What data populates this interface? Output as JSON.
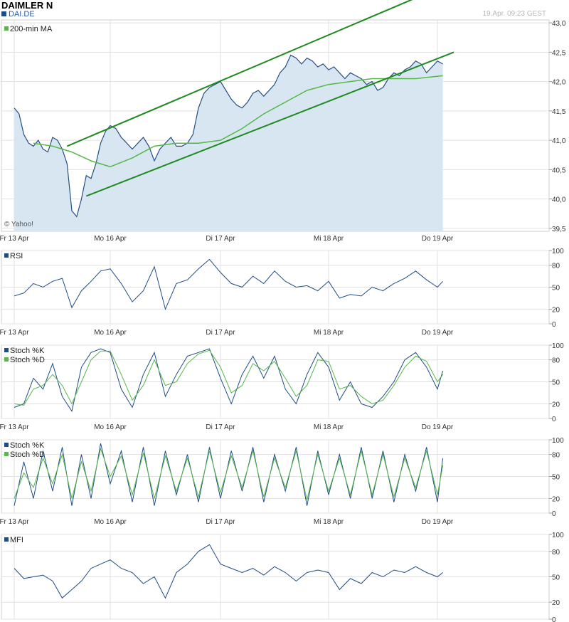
{
  "header": {
    "title": "DAIMLER N",
    "symbol": "DAI.DE",
    "timestamp": "19.Apr. 09:23 GEST"
  },
  "copyright": "© Yahoo!",
  "colors": {
    "price_fill": "#d7e6f1",
    "price_line": "#244f82",
    "channel": "#1f8a1f",
    "ma": "#55b847",
    "sar_up": "#4cb848",
    "sar_down": "#cc1111",
    "band": "#8a8a8a",
    "grid": "#e1e1e1",
    "osc_line": "#1d4d86",
    "osc_signal": "#55b847"
  },
  "x_axis_labels": [
    "Fr 13 Apr",
    "Mo 16 Apr",
    "Di 17 Apr",
    "Mi 18 Apr",
    "Do 19 Apr"
  ],
  "chart_data": [
    {
      "type": "line",
      "panel": "price",
      "legend": [
        "200-min MA"
      ],
      "y_ticks": [
        "43,0",
        "42,5",
        "42,0",
        "41,5",
        "41,0",
        "40,5",
        "40,0",
        "39,5"
      ],
      "ylim": [
        39.45,
        43.05
      ],
      "x_days": [
        "Fr 13 Apr",
        "Mo 16 Apr",
        "Di 17 Apr",
        "Mi 18 Apr",
        "Do 19 Apr"
      ],
      "series": [
        {
          "name": "DAI.DE",
          "x": [
            0.0,
            0.05,
            0.1,
            0.15,
            0.2,
            0.25,
            0.3,
            0.35,
            0.4,
            0.45,
            0.5,
            0.55,
            0.6,
            0.65,
            0.7,
            0.75,
            0.8,
            0.85,
            0.9,
            0.95,
            1.0,
            1.05,
            1.1,
            1.15,
            1.2,
            1.25,
            1.3,
            1.35,
            1.4,
            1.45,
            1.5,
            1.55,
            1.6,
            1.65,
            1.7,
            1.75,
            1.8,
            1.85,
            1.9,
            1.95,
            2.0,
            2.05,
            2.1,
            2.15,
            2.2,
            2.25,
            2.3,
            2.35,
            2.4,
            2.45,
            2.5,
            2.55,
            2.6,
            2.65,
            2.7,
            2.75,
            2.8,
            2.85,
            2.9,
            2.95,
            3.0,
            3.05,
            3.1,
            3.15,
            3.2,
            3.25,
            3.3,
            3.35,
            3.4,
            3.45,
            3.5,
            3.55,
            3.6,
            3.65,
            3.7,
            3.75,
            3.8,
            3.85,
            3.9,
            3.95,
            4.0,
            4.05
          ],
          "values": [
            41.55,
            41.45,
            41.1,
            40.95,
            40.9,
            41.0,
            40.85,
            40.8,
            41.05,
            41.0,
            40.85,
            40.6,
            39.8,
            39.7,
            40.0,
            40.4,
            40.35,
            40.6,
            40.95,
            41.15,
            41.25,
            41.2,
            41.05,
            40.95,
            40.85,
            40.95,
            41.05,
            40.9,
            40.65,
            40.85,
            40.95,
            41.05,
            40.9,
            40.9,
            40.95,
            41.1,
            41.55,
            41.8,
            41.9,
            41.95,
            42.0,
            41.85,
            41.7,
            41.6,
            41.55,
            41.65,
            41.8,
            41.85,
            41.75,
            41.85,
            41.95,
            42.15,
            42.25,
            42.45,
            42.4,
            42.3,
            42.4,
            42.35,
            42.25,
            42.3,
            42.2,
            42.25,
            42.15,
            42.05,
            42.15,
            42.1,
            42.05,
            41.95,
            42.0,
            41.85,
            41.9,
            42.05,
            42.15,
            42.1,
            42.2,
            42.25,
            42.35,
            42.3,
            42.15,
            42.25,
            42.35,
            42.3
          ]
        },
        {
          "name": "200-min MA",
          "x": [
            0.2,
            0.4,
            0.6,
            0.8,
            1.0,
            1.2,
            1.4,
            1.6,
            1.8,
            2.0,
            2.2,
            2.4,
            2.6,
            2.8,
            3.0,
            3.2,
            3.4,
            3.6,
            3.8,
            4.05
          ],
          "values": [
            40.95,
            40.9,
            40.8,
            40.65,
            40.55,
            40.7,
            40.9,
            40.95,
            40.95,
            41.0,
            41.2,
            41.45,
            41.65,
            41.85,
            41.95,
            42.0,
            42.05,
            42.05,
            42.05,
            42.1
          ]
        }
      ],
      "channel_lines": [
        {
          "x": [
            0.75,
            4.15
          ],
          "values": [
            40.05,
            42.5
          ]
        },
        {
          "x": [
            0.55,
            4.15
          ],
          "values": [
            40.9,
            43.7
          ]
        }
      ]
    },
    {
      "type": "line",
      "panel": "RSI",
      "legend": [
        "RSI"
      ],
      "y_ticks": [
        "100",
        "80",
        "50",
        "20",
        "0"
      ],
      "ylim": [
        0,
        100
      ],
      "series": [
        {
          "name": "RSI",
          "x": [
            0.0,
            0.1,
            0.2,
            0.3,
            0.4,
            0.5,
            0.6,
            0.7,
            0.8,
            0.9,
            1.0,
            1.1,
            1.2,
            1.3,
            1.4,
            1.5,
            1.6,
            1.7,
            1.8,
            1.9,
            2.0,
            2.1,
            2.2,
            2.3,
            2.4,
            2.5,
            2.6,
            2.7,
            2.8,
            2.9,
            3.0,
            3.1,
            3.2,
            3.3,
            3.4,
            3.5,
            3.6,
            3.7,
            3.8,
            3.9,
            4.0,
            4.05
          ],
          "values": [
            38,
            42,
            55,
            50,
            58,
            62,
            22,
            45,
            58,
            72,
            75,
            55,
            30,
            45,
            78,
            20,
            55,
            60,
            75,
            88,
            70,
            55,
            50,
            65,
            55,
            72,
            58,
            50,
            52,
            45,
            58,
            35,
            40,
            38,
            50,
            45,
            55,
            62,
            72,
            60,
            50,
            58
          ]
        }
      ]
    },
    {
      "type": "line",
      "panel": "Stoch (slow)",
      "legend": [
        "Stoch %K",
        "Stoch %D"
      ],
      "y_ticks": [
        "100",
        "80",
        "50",
        "20",
        "0"
      ],
      "ylim": [
        0,
        100
      ],
      "series": [
        {
          "name": "Stoch %K",
          "x": [
            0.0,
            0.1,
            0.2,
            0.3,
            0.4,
            0.5,
            0.6,
            0.7,
            0.8,
            0.9,
            1.0,
            1.1,
            1.2,
            1.3,
            1.4,
            1.5,
            1.6,
            1.7,
            1.8,
            1.9,
            2.0,
            2.1,
            2.2,
            2.3,
            2.4,
            2.5,
            2.6,
            2.7,
            2.8,
            2.9,
            3.0,
            3.1,
            3.2,
            3.3,
            3.4,
            3.5,
            3.6,
            3.7,
            3.8,
            3.9,
            4.0,
            4.05
          ],
          "values": [
            15,
            20,
            55,
            40,
            75,
            30,
            10,
            70,
            90,
            95,
            90,
            40,
            15,
            60,
            90,
            30,
            60,
            85,
            90,
            95,
            55,
            20,
            60,
            85,
            55,
            85,
            40,
            20,
            60,
            90,
            70,
            25,
            50,
            20,
            15,
            30,
            50,
            80,
            90,
            70,
            40,
            65
          ]
        },
        {
          "name": "Stoch %D",
          "x": [
            0.0,
            0.1,
            0.2,
            0.3,
            0.4,
            0.5,
            0.6,
            0.7,
            0.8,
            0.9,
            1.0,
            1.1,
            1.2,
            1.3,
            1.4,
            1.5,
            1.6,
            1.7,
            1.8,
            1.9,
            2.0,
            2.1,
            2.2,
            2.3,
            2.4,
            2.5,
            2.6,
            2.7,
            2.8,
            2.9,
            3.0,
            3.1,
            3.2,
            3.3,
            3.4,
            3.5,
            3.6,
            3.7,
            3.8,
            3.9,
            4.0,
            4.05
          ],
          "values": [
            20,
            18,
            40,
            45,
            60,
            45,
            20,
            50,
            80,
            92,
            92,
            60,
            25,
            45,
            80,
            45,
            50,
            75,
            88,
            93,
            70,
            35,
            45,
            75,
            65,
            78,
            55,
            30,
            45,
            80,
            78,
            40,
            45,
            30,
            20,
            25,
            45,
            70,
            85,
            78,
            50,
            60
          ]
        }
      ]
    },
    {
      "type": "line",
      "panel": "Stoch (fast)",
      "legend": [
        "Stoch %K",
        "Stoch %D"
      ],
      "y_ticks": [
        "100",
        "80",
        "50",
        "20",
        "0"
      ],
      "ylim": [
        0,
        100
      ],
      "series": [
        {
          "name": "Stoch %K",
          "x": [
            0.0,
            0.1,
            0.2,
            0.3,
            0.4,
            0.5,
            0.6,
            0.7,
            0.8,
            0.9,
            1.0,
            1.1,
            1.2,
            1.3,
            1.4,
            1.5,
            1.6,
            1.7,
            1.8,
            1.9,
            2.0,
            2.1,
            2.2,
            2.3,
            2.4,
            2.5,
            2.6,
            2.7,
            2.8,
            2.9,
            3.0,
            3.1,
            3.2,
            3.3,
            3.4,
            3.5,
            3.6,
            3.7,
            3.8,
            3.9,
            4.0,
            4.05
          ],
          "values": [
            10,
            70,
            20,
            85,
            30,
            90,
            10,
            80,
            20,
            95,
            40,
            85,
            15,
            90,
            10,
            85,
            25,
            80,
            15,
            90,
            20,
            85,
            30,
            90,
            15,
            80,
            30,
            90,
            10,
            85,
            25,
            80,
            20,
            90,
            20,
            85,
            15,
            80,
            30,
            90,
            15,
            75
          ]
        },
        {
          "name": "Stoch %D",
          "x": [
            0.0,
            0.1,
            0.2,
            0.3,
            0.4,
            0.5,
            0.6,
            0.7,
            0.8,
            0.9,
            1.0,
            1.1,
            1.2,
            1.3,
            1.4,
            1.5,
            1.6,
            1.7,
            1.8,
            1.9,
            2.0,
            2.1,
            2.2,
            2.3,
            2.4,
            2.5,
            2.6,
            2.7,
            2.8,
            2.9,
            3.0,
            3.1,
            3.2,
            3.3,
            3.4,
            3.5,
            3.6,
            3.7,
            3.8,
            3.9,
            4.0,
            4.05
          ],
          "values": [
            20,
            55,
            35,
            75,
            40,
            80,
            20,
            70,
            30,
            88,
            50,
            78,
            25,
            82,
            20,
            78,
            30,
            75,
            22,
            85,
            28,
            78,
            35,
            85,
            22,
            75,
            35,
            85,
            18,
            80,
            30,
            75,
            25,
            85,
            25,
            80,
            22,
            75,
            35,
            85,
            25,
            65
          ]
        }
      ]
    },
    {
      "type": "line",
      "panel": "MFI",
      "legend": [
        "MFI"
      ],
      "y_ticks": [
        "100",
        "80",
        "50",
        "20",
        "0"
      ],
      "ylim": [
        0,
        100
      ],
      "series": [
        {
          "name": "MFI",
          "x": [
            0.0,
            0.1,
            0.2,
            0.3,
            0.4,
            0.5,
            0.6,
            0.7,
            0.8,
            0.9,
            1.0,
            1.1,
            1.2,
            1.3,
            1.4,
            1.5,
            1.6,
            1.7,
            1.8,
            1.9,
            2.0,
            2.1,
            2.2,
            2.3,
            2.4,
            2.5,
            2.6,
            2.7,
            2.8,
            2.9,
            3.0,
            3.1,
            3.2,
            3.3,
            3.4,
            3.5,
            3.6,
            3.7,
            3.8,
            3.9,
            4.0,
            4.05
          ],
          "values": [
            60,
            48,
            50,
            52,
            45,
            25,
            35,
            45,
            60,
            65,
            70,
            60,
            55,
            42,
            50,
            25,
            55,
            65,
            80,
            88,
            65,
            60,
            55,
            60,
            52,
            62,
            55,
            45,
            55,
            58,
            55,
            35,
            48,
            42,
            55,
            50,
            58,
            55,
            62,
            55,
            50,
            55
          ]
        }
      ]
    }
  ]
}
